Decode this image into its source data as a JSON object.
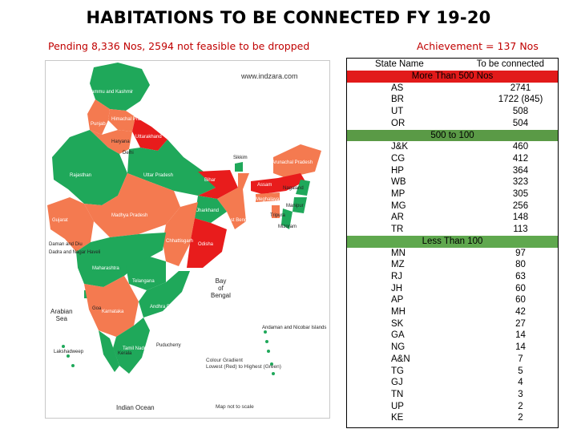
{
  "title": "HABITATIONS TO BE CONNECTED FY 19-20",
  "subtitle_left": "Pending 8,336 Nos, 2594 not feasible to be dropped",
  "subtitle_right": "Achievement = 137 Nos",
  "colors": {
    "red": "#e81c1c",
    "orange": "#f47a50",
    "green": "#1fa85a",
    "salmon": "#f58f5f",
    "sea": "#ffffff"
  },
  "map": {
    "watermark": "www.indzara.com",
    "labels": {
      "jk": "Jammu and Kashmir",
      "hp": "Himachal Pradesh",
      "pb": "Punjab",
      "uk": "Uttarakhand",
      "hr": "Haryana",
      "dl": "Delhi",
      "rj": "Rajasthan",
      "up": "Uttar Pradesh",
      "sk": "Sikkim",
      "ar": "Arunachal Pradesh",
      "as": "Assam",
      "nl": "Nagaland",
      "bh": "Bihar",
      "mg": "Meghalaya",
      "mn": "Manipur",
      "gj": "Gujarat",
      "mp": "Madhya Pradesh",
      "jh": "Jharkhand",
      "wb": "West Bengal",
      "tr": "Tripura",
      "mz": "Mizoram",
      "ch": "Chhattisgarh",
      "od": "Odisha",
      "dd": "Daman and Diu",
      "dnh": "Dadra and Nagar Haveli",
      "mh": "Maharashtra",
      "tg": "Telangana",
      "ga": "Goa",
      "ka": "Karnataka",
      "ap": "Andhra Pradesh",
      "tn": "Tamil Nadu",
      "kl": "Kerala",
      "py": "Puducherry",
      "ld": "Lakshadweep",
      "an": "Andaman and Nicobar Islands"
    },
    "arabian_sea": "Arabian\nSea",
    "bay_of_bengal": "Bay\nof\nBengal",
    "indian_ocean": "Indian Ocean",
    "legend_title": "Colour Gradient",
    "legend_text": "Lowest (Red) to Highest (Green)",
    "scale_note": "Map not to scale"
  },
  "table": {
    "header_state": "State Name",
    "header_value": "To be connected",
    "groups": [
      {
        "label": "More Than 500 Nos",
        "style": "red",
        "rows": [
          [
            "AS",
            "2741"
          ],
          [
            "BR",
            "1722 (845)"
          ],
          [
            "UT",
            "508"
          ],
          [
            "OR",
            "504"
          ]
        ]
      },
      {
        "label": "500 to 100",
        "style": "green1",
        "rows": [
          [
            "J&K",
            "460"
          ],
          [
            "CG",
            "412"
          ],
          [
            "HP",
            "364"
          ],
          [
            "WB",
            "323"
          ],
          [
            "MP",
            "305"
          ],
          [
            "MG",
            "256"
          ],
          [
            "AR",
            "148"
          ],
          [
            "TR",
            "113"
          ]
        ]
      },
      {
        "label": "Less Than 100",
        "style": "green2",
        "rows": [
          [
            "MN",
            "97"
          ],
          [
            "MZ",
            "80"
          ],
          [
            "RJ",
            "63"
          ],
          [
            "JH",
            "60"
          ],
          [
            "AP",
            "60"
          ],
          [
            "MH",
            "42"
          ],
          [
            "SK",
            "27"
          ],
          [
            "GA",
            "14"
          ],
          [
            "NG",
            "14"
          ],
          [
            "A&N",
            "7"
          ],
          [
            "TG",
            "5"
          ],
          [
            "GJ",
            "4"
          ],
          [
            "TN",
            "3"
          ],
          [
            "UP",
            "2"
          ],
          [
            "KE",
            "2"
          ]
        ]
      }
    ]
  }
}
